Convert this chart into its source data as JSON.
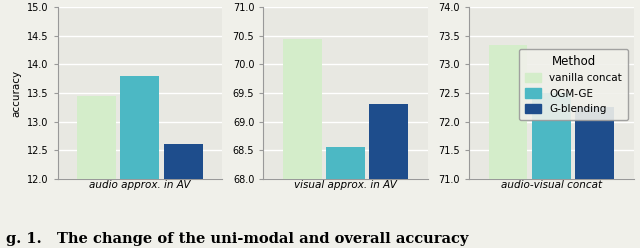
{
  "subplots": [
    {
      "xlabel": "audio approx. in AV",
      "ylim": [
        12.0,
        15.0
      ],
      "yticks": [
        12.0,
        12.5,
        13.0,
        13.5,
        14.0,
        14.5,
        15.0
      ],
      "values": [
        13.45,
        13.8,
        12.6
      ]
    },
    {
      "xlabel": "visual approx. in AV",
      "ylim": [
        68.0,
        71.0
      ],
      "yticks": [
        68.0,
        68.5,
        69.0,
        69.5,
        70.0,
        70.5,
        71.0
      ],
      "values": [
        70.45,
        68.55,
        69.3
      ]
    },
    {
      "xlabel": "audio-visual concat",
      "ylim": [
        71.0,
        74.0
      ],
      "yticks": [
        71.0,
        71.5,
        72.0,
        72.5,
        73.0,
        73.5,
        74.0
      ],
      "values": [
        73.35,
        72.5,
        72.25
      ]
    }
  ],
  "bar_colors": [
    "#d4edca",
    "#4cb8c4",
    "#1e4d8c"
  ],
  "legend_labels": [
    "vanilla concat",
    "OGM-GE",
    "G-blending"
  ],
  "legend_title": "Method",
  "ylabel": "accuracy",
  "caption": "g. 1.   The change of the uni-modal and overall accuracy",
  "bar_width": 0.18,
  "bar_gap": 0.02,
  "background_color": "#f0f0ea",
  "plot_bg_color": "#e8e8e2",
  "spine_color": "#999999",
  "tick_fontsize": 7.0,
  "label_fontsize": 7.5,
  "legend_fontsize": 7.5,
  "legend_title_fontsize": 8.5
}
